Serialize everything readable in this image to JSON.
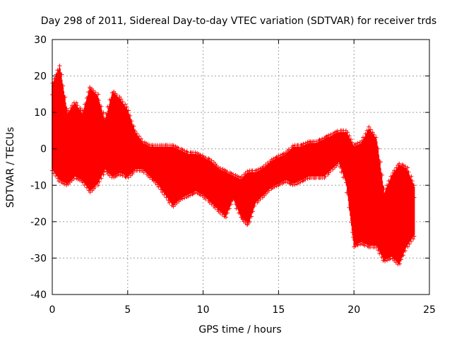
{
  "chart_data": {
    "type": "scatter",
    "title": "Day 298 of 2011, Sidereal Day-to-day VTEC variation (SDTVAR) for receiver trds",
    "xlabel": "GPS time / hours",
    "ylabel": "SDTVAR / TECUs",
    "xlim": [
      0,
      25
    ],
    "ylim": [
      -40,
      30
    ],
    "x_ticks": [
      0,
      5,
      10,
      15,
      20,
      25
    ],
    "x_tick_labels": [
      "0",
      "5",
      "10",
      "15",
      "20",
      "25"
    ],
    "y_ticks": [
      -40,
      -30,
      -20,
      -10,
      0,
      10,
      20,
      30
    ],
    "y_tick_labels": [
      "-40",
      "-30",
      "-20",
      "-10",
      "0",
      "10",
      "20",
      "30"
    ],
    "grid": true,
    "marker": "+",
    "series_color": "#ff0000",
    "series": [
      {
        "name": "SDTVAR",
        "band_hours": [
          0.0,
          0.5,
          1.0,
          1.5,
          2.0,
          2.5,
          3.0,
          3.5,
          4.0,
          4.5,
          5.0,
          5.5,
          6.0,
          6.5,
          7.0,
          7.5,
          8.0,
          8.5,
          9.0,
          9.5,
          10.0,
          10.5,
          11.0,
          11.5,
          12.0,
          12.5,
          13.0,
          13.5,
          14.0,
          14.5,
          15.0,
          15.5,
          16.0,
          16.5,
          17.0,
          17.5,
          18.0,
          18.5,
          19.0,
          19.5,
          20.0,
          20.5,
          21.0,
          21.5,
          22.0,
          22.5,
          23.0,
          23.5,
          24.0
        ],
        "band_min": [
          -6,
          -9,
          -10,
          -8,
          -9,
          -12,
          -10,
          -6,
          -8,
          -7,
          -8,
          -6,
          -6,
          -8,
          -10,
          -13,
          -16,
          -14,
          -13,
          -12,
          -13,
          -15,
          -17,
          -19,
          -14,
          -19,
          -21,
          -15,
          -13,
          -11,
          -10,
          -9,
          -10,
          -9,
          -8,
          -8,
          -8,
          -6,
          -4,
          -10,
          -27,
          -26,
          -27,
          -27,
          -31,
          -30,
          -32,
          -27,
          -24
        ],
        "band_max": [
          18,
          23,
          10,
          13,
          10,
          17,
          15,
          8,
          16,
          14,
          11,
          5,
          2,
          1,
          1,
          1,
          1,
          0,
          -1,
          -1,
          -2,
          -3,
          -5,
          -6,
          -7,
          -8,
          -6,
          -6,
          -5,
          -3,
          -2,
          -1,
          1,
          1,
          2,
          2,
          3,
          4,
          5,
          5,
          1,
          2,
          6,
          3,
          -12,
          -7,
          -4,
          -5,
          -10
        ]
      }
    ]
  }
}
